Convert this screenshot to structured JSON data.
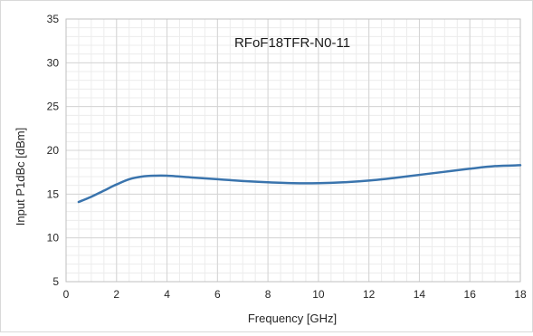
{
  "chart_data": {
    "type": "line",
    "title": "RFoF18TFR-N0-11",
    "xlabel": "Frequency [GHz]",
    "ylabel": "Input P1dBc [dBm]",
    "xlim": [
      0,
      18
    ],
    "ylim": [
      5,
      35
    ],
    "xticks": [
      0,
      2,
      4,
      6,
      8,
      10,
      12,
      14,
      16,
      18
    ],
    "yticks": [
      5,
      10,
      15,
      20,
      25,
      30,
      35
    ],
    "grid": true,
    "minor_grid": true,
    "legend": "none",
    "series": [
      {
        "color": "#3a74ad",
        "x": [
          0.5,
          1,
          1.5,
          2,
          2.5,
          3,
          3.5,
          4,
          5,
          6,
          7,
          8,
          9,
          10,
          11,
          12,
          13,
          14,
          15,
          16,
          17,
          18
        ],
        "y": [
          14.1,
          14.7,
          15.4,
          16.1,
          16.7,
          17.0,
          17.1,
          17.1,
          16.9,
          16.7,
          16.5,
          16.35,
          16.25,
          16.25,
          16.35,
          16.55,
          16.85,
          17.2,
          17.55,
          17.9,
          18.2,
          18.3
        ]
      }
    ]
  }
}
